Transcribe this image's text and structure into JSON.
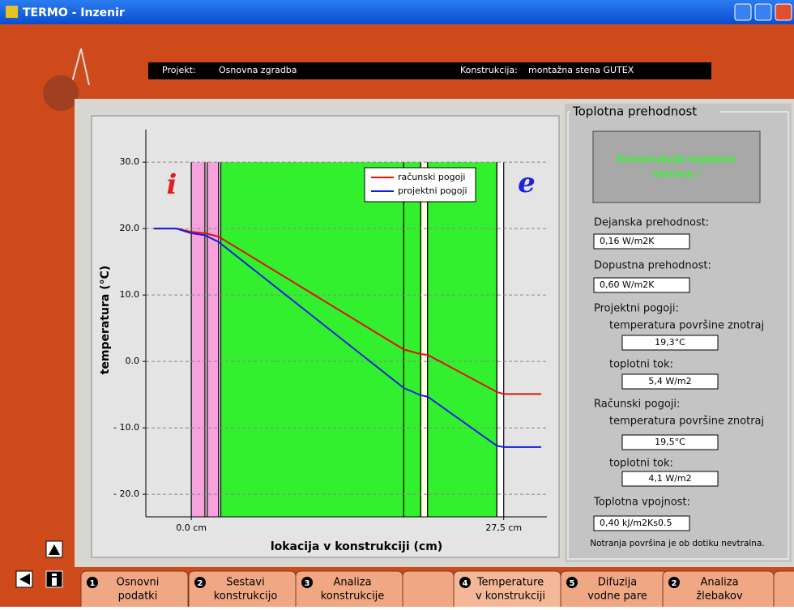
{
  "window": {
    "title": "TERMO - Inzenir"
  },
  "header": {
    "project_label": "Projekt:",
    "project": "Osnovna zgradba",
    "construction_label": "Konstrukcija:",
    "construction": "montažna stena GUTEX"
  },
  "chart_data": {
    "type": "line",
    "x_label": "lokacija v konstrukciji (cm)",
    "y_label": "temperatura (°C)",
    "annotations": [
      {
        "text": "i",
        "color": "#e02020"
      },
      {
        "text": "e",
        "color": "#2020e0"
      }
    ],
    "xlim": [
      -4,
      31.3
    ],
    "ylim": [
      -23.4,
      34.9
    ],
    "xticks": [
      {
        "value": 0,
        "label": "0.0 cm"
      },
      {
        "value": 27.5,
        "label": "27,5 cm"
      }
    ],
    "yticks": [
      {
        "value": 30,
        "label": "30.0"
      },
      {
        "value": 20,
        "label": "20.0"
      },
      {
        "value": 10,
        "label": "10.0"
      },
      {
        "value": 0,
        "label": "0.0"
      },
      {
        "value": -10,
        "label": "- 10.0"
      },
      {
        "value": -20,
        "label": "- 20.0"
      }
    ],
    "grid": true,
    "legend": "top-right",
    "layers": [
      {
        "x0": 0,
        "x1": 1.2,
        "color": "#f7a2dc"
      },
      {
        "x0": 1.4,
        "x1": 2.4,
        "color": "#f7a2dc"
      },
      {
        "x0": 2.6,
        "x1": 18.7,
        "color": "#33f02e"
      },
      {
        "x0": 18.7,
        "x1": 20.2,
        "color": "#33f02e"
      },
      {
        "x0": 20.2,
        "x1": 20.8,
        "color": "#fffbe0"
      },
      {
        "x0": 20.8,
        "x1": 26.9,
        "color": "#33f02e"
      },
      {
        "x0": 26.9,
        "x1": 27.5,
        "color": "#ffffff"
      }
    ],
    "x": [
      -3.3,
      -1.3,
      0,
      1.2,
      2.4,
      18.7,
      20.2,
      20.8,
      26.9,
      27.5,
      30.8
    ],
    "series": [
      {
        "name": "računski pogoji",
        "color": "#e01010",
        "values": [
          20.0,
          20.0,
          19.5,
          19.3,
          18.8,
          1.8,
          1.1,
          1.0,
          -4.6,
          -4.9,
          -4.9
        ]
      },
      {
        "name": "projektni pogoji",
        "color": "#1020e0",
        "values": [
          20.0,
          20.0,
          19.3,
          19.0,
          18.0,
          -4.0,
          -5.1,
          -5.3,
          -12.7,
          -12.9,
          -12.9
        ]
      }
    ]
  },
  "panel": {
    "title": "Toplotna prehodnost",
    "status": [
      "Konstrukcija toplotno",
      "ustreza !"
    ],
    "actual_label": "Dejanska prehodnost:",
    "actual": "0,16 W/m2K",
    "allowed_label": "Dopustna prehodnost:",
    "allowed": "0,60 W/m2K",
    "design_label": "Projektni pogoji:",
    "design_temp_label": "temperatura površine znotraj",
    "design_temp": "19,3°C",
    "design_flux_label": "toplotni tok:",
    "design_flux": "5,4 W/m2",
    "calc_label": "Računski pogoji:",
    "calc_temp_label": "temperatura površine znotraj",
    "calc_temp": "19,5°C",
    "calc_flux_label": "toplotni tok:",
    "calc_flux": "4,1 W/m2",
    "inertia_label": "Toplotna vpojnost:",
    "inertia": "0,40 kJ/m2Ks0.5",
    "note": "Notranja površina je ob dotiku nevtralna."
  },
  "tabs": [
    {
      "number": "1",
      "lines": [
        "Osnovni",
        "podatki"
      ]
    },
    {
      "number": "2",
      "lines": [
        "Sestavi",
        "konstrukcijo"
      ]
    },
    {
      "number": "3",
      "lines": [
        "Analiza",
        "konstrukcije"
      ]
    },
    {
      "number": "4",
      "lines": [
        "Temperature",
        "v konstrukciji"
      ]
    },
    {
      "number": "5",
      "lines": [
        "Difuzija",
        "vodne pare"
      ]
    },
    {
      "number": "2",
      "lines": [
        "Analiza",
        "žlebakov"
      ]
    }
  ]
}
